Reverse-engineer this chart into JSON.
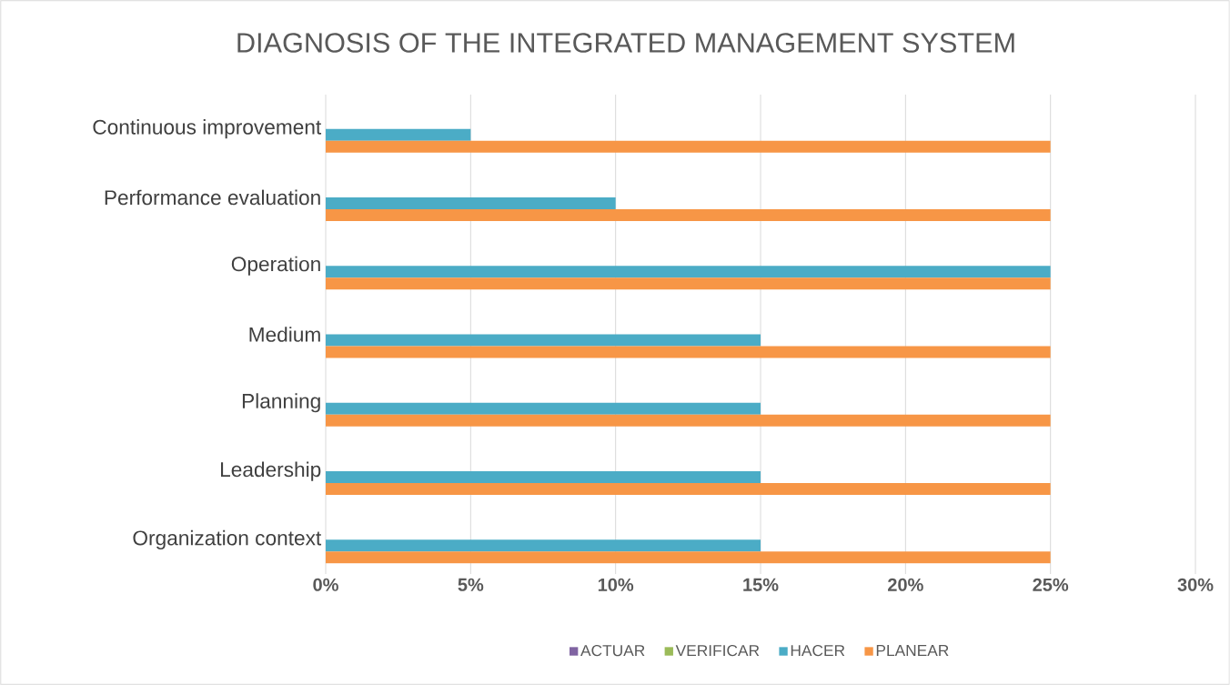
{
  "chart_data": {
    "type": "bar",
    "orientation": "horizontal",
    "title": "DIAGNOSIS OF THE INTEGRATED MANAGEMENT SYSTEM",
    "categories": [
      "Continuous improvement",
      "Performance evaluation",
      "Operation",
      "Medium",
      "Planning",
      "Leadership",
      "Organization context"
    ],
    "series": [
      {
        "name": "ACTUAR",
        "color": "#8064a2",
        "values": [
          0,
          0,
          0,
          0,
          0,
          0,
          0
        ]
      },
      {
        "name": "VERIFICAR",
        "color": "#9bbb59",
        "values": [
          0,
          0,
          0,
          0,
          0,
          0,
          0
        ]
      },
      {
        "name": "HACER",
        "color": "#4bacc6",
        "values": [
          5,
          10,
          25,
          15,
          15,
          15,
          15
        ]
      },
      {
        "name": "PLANEAR",
        "color": "#f79646",
        "values": [
          25,
          25,
          25,
          25,
          25,
          25,
          25
        ]
      }
    ],
    "xlim": [
      0,
      30
    ],
    "xticks": [
      {
        "value": 0,
        "label": "0%"
      },
      {
        "value": 5,
        "label": "5%"
      },
      {
        "value": 10,
        "label": "10%"
      },
      {
        "value": 15,
        "label": "15%"
      },
      {
        "value": 20,
        "label": "20%"
      },
      {
        "value": 25,
        "label": "25%"
      },
      {
        "value": 30,
        "label": "30%"
      }
    ],
    "grid": "x",
    "legend": "bottom"
  }
}
